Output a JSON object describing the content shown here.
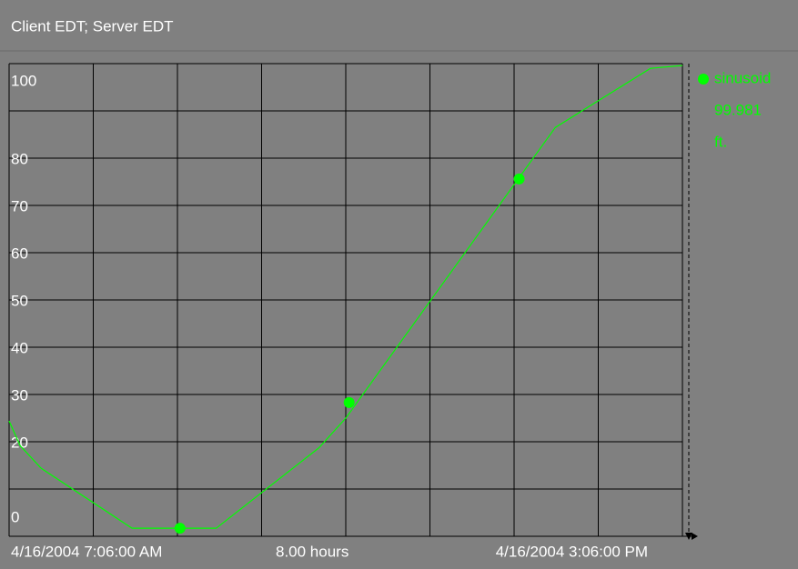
{
  "chart_data": {
    "type": "line",
    "header": "Client EDT; Server EDT",
    "x_start_label": "4/16/2004 7:06:00 AM",
    "x_span_label": "8.00 hours",
    "x_end_label": "4/16/2004 3:06:00 PM",
    "xlim": [
      0,
      8
    ],
    "xgrid": [
      0,
      1,
      2,
      3,
      4,
      5,
      6,
      7,
      8
    ],
    "ylim": [
      0,
      100
    ],
    "yticks": [
      0,
      20,
      30,
      40,
      50,
      60,
      70,
      80,
      100
    ],
    "ygrid": [
      0,
      10,
      20,
      30,
      40,
      50,
      60,
      70,
      80,
      90,
      100
    ],
    "grid": true,
    "series": [
      {
        "name": "sinusoid",
        "color": "#00ff00",
        "current_value": "99.981",
        "units": "ft.",
        "x": [
          0,
          0.13,
          0.38,
          1.46,
          2.46,
          3.68,
          4.0,
          6.49,
          7.62,
          8.0
        ],
        "values": [
          24.4,
          19.2,
          14.4,
          1.7,
          1.7,
          18.7,
          25,
          86.5,
          99,
          99.6
        ],
        "marker_x": [
          2.03,
          4.04,
          6.06
        ],
        "marker_values": [
          1.7,
          28.3,
          75.6
        ]
      }
    ]
  }
}
